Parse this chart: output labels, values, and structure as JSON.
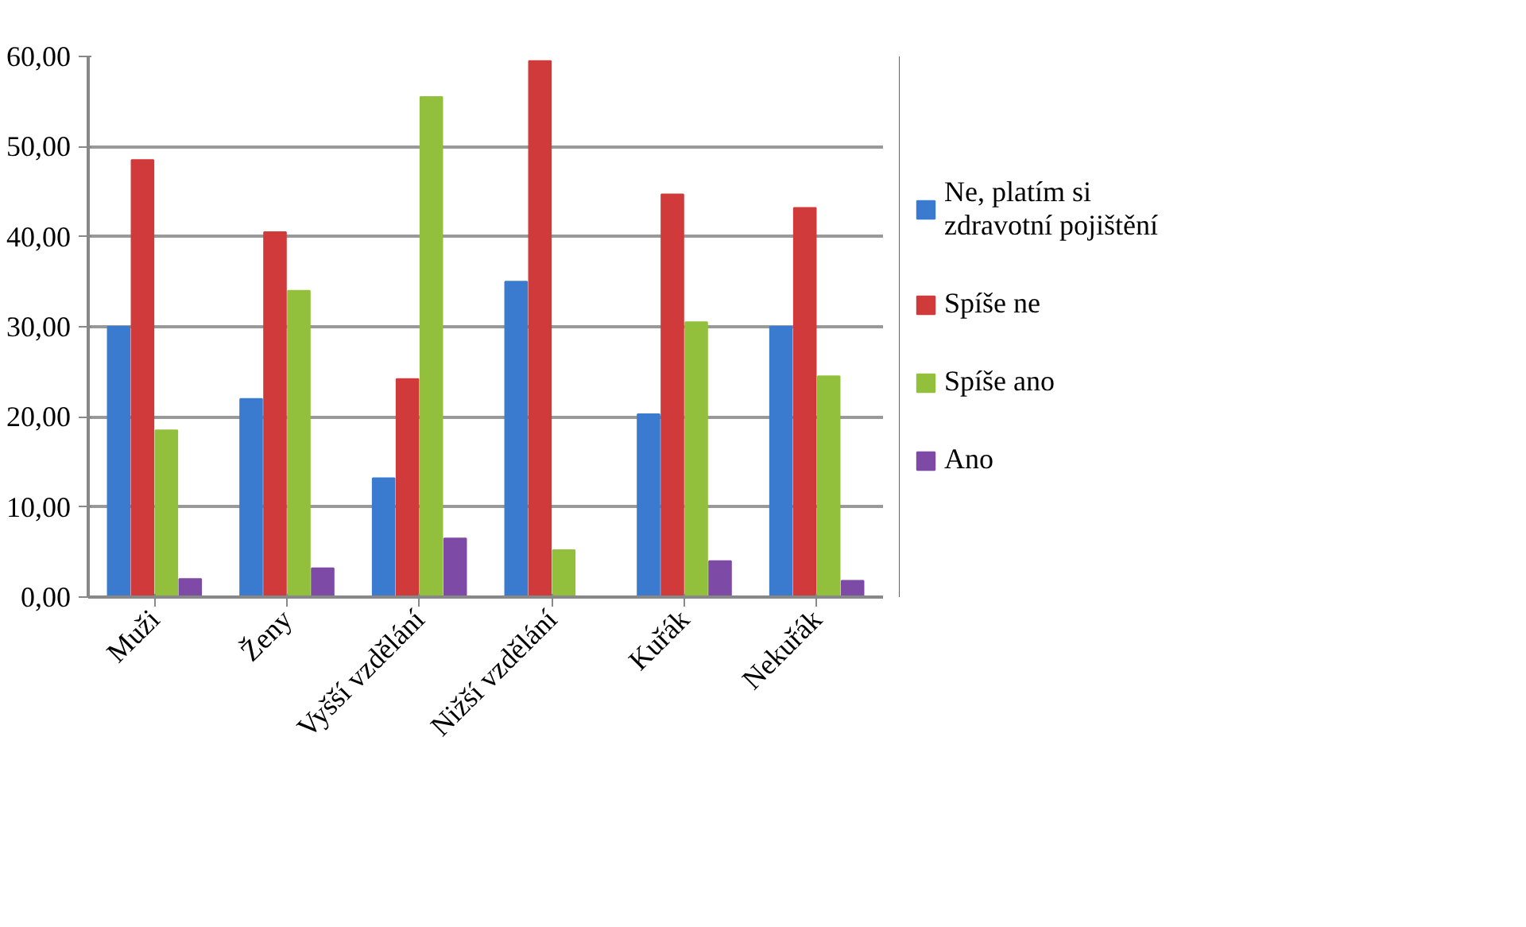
{
  "chart_data": {
    "type": "bar",
    "categories": [
      "Muži",
      "Ženy",
      "Vyšší vzdělání",
      "Nižší vzdělání",
      "Kuřák",
      "Nekuřák"
    ],
    "series": [
      {
        "name": "Ne, platím si zdravotní pojištění",
        "color": "#3a7bd0",
        "values": [
          30,
          22,
          13.2,
          35,
          20.3,
          30
        ]
      },
      {
        "name": "Spíše ne",
        "color": "#d03a3a",
        "values": [
          48.5,
          40.5,
          24.2,
          59.5,
          44.7,
          43.2
        ]
      },
      {
        "name": "Spíše ano",
        "color": "#92c03c",
        "values": [
          18.5,
          34,
          55.5,
          5.2,
          30.5,
          24.5
        ]
      },
      {
        "name": "Ano",
        "color": "#7d4aa6",
        "values": [
          2,
          3.2,
          6.5,
          null,
          4,
          1.8
        ]
      }
    ],
    "ylim": [
      0,
      60
    ],
    "yticks": [
      {
        "value": 0,
        "label": "0,00"
      },
      {
        "value": 10,
        "label": "10,00"
      },
      {
        "value": 20,
        "label": "20,00"
      },
      {
        "value": 30,
        "label": "30,00"
      },
      {
        "value": 40,
        "label": "40,00"
      },
      {
        "value": 50,
        "label": "50,00"
      },
      {
        "value": 60,
        "label": "60,00"
      }
    ],
    "grid": "y",
    "legend": "right"
  }
}
